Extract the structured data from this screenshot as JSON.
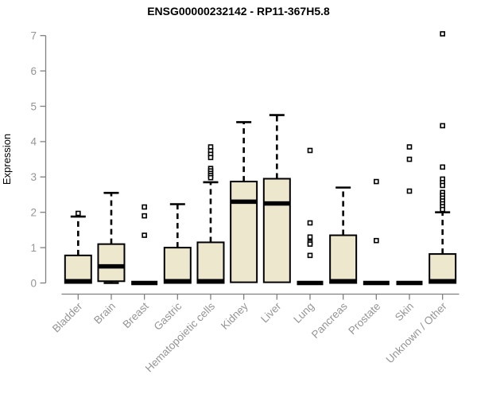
{
  "page": {
    "background": "#ffffff"
  },
  "chart_data": {
    "type": "boxplot",
    "title": "ENSG00000232142 - RP11-367H5.8",
    "ylabel": "Expression",
    "xlabel": "",
    "ylim": [
      0,
      7
    ],
    "y_ticks": [
      0,
      1,
      2,
      3,
      4,
      5,
      6,
      7
    ],
    "grid": false,
    "legend": "none",
    "categories": [
      "Bladder",
      "Brain",
      "Breast",
      "Gastric",
      "Hematopoietic cells",
      "Kidney",
      "Liver",
      "Lung",
      "Pancreas",
      "Prostate",
      "Skin",
      "Unknown / Other"
    ],
    "series": [
      {
        "name": "Bladder",
        "q1": 0,
        "median": 0.05,
        "q3": 0.78,
        "whisker_low": 0,
        "whisker_high": 1.88,
        "outliers": [
          1.97
        ]
      },
      {
        "name": "Brain",
        "q1": 0.05,
        "median": 0.47,
        "q3": 1.1,
        "whisker_low": 0,
        "whisker_high": 2.55,
        "outliers": []
      },
      {
        "name": "Breast",
        "q1": 0,
        "median": 0,
        "q3": 0,
        "whisker_low": 0,
        "whisker_high": 0,
        "outliers": [
          2.15,
          1.9,
          1.35
        ]
      },
      {
        "name": "Gastric",
        "q1": 0,
        "median": 0.05,
        "q3": 1.0,
        "whisker_low": 0,
        "whisker_high": 2.23,
        "outliers": []
      },
      {
        "name": "Hematopoietic cells",
        "q1": 0,
        "median": 0.05,
        "q3": 1.15,
        "whisker_low": 0,
        "whisker_high": 2.85,
        "outliers": [
          3.85,
          3.74,
          3.64,
          3.55,
          3.24,
          3.17,
          3.1,
          3.04,
          2.98
        ]
      },
      {
        "name": "Kidney",
        "q1": 0.02,
        "median": 2.3,
        "q3": 2.87,
        "whisker_low": 0,
        "whisker_high": 4.55,
        "outliers": []
      },
      {
        "name": "Liver",
        "q1": 0.02,
        "median": 2.25,
        "q3": 2.95,
        "whisker_low": 0,
        "whisker_high": 4.75,
        "outliers": []
      },
      {
        "name": "Lung",
        "q1": 0,
        "median": 0,
        "q3": 0,
        "whisker_low": 0,
        "whisker_high": 0,
        "outliers": [
          3.75,
          1.7,
          1.3,
          1.15,
          1.1,
          0.78
        ]
      },
      {
        "name": "Pancreas",
        "q1": 0,
        "median": 0.05,
        "q3": 1.35,
        "whisker_low": 0,
        "whisker_high": 2.7,
        "outliers": []
      },
      {
        "name": "Prostate",
        "q1": 0,
        "median": 0,
        "q3": 0,
        "whisker_low": 0,
        "whisker_high": 0,
        "outliers": [
          2.87,
          1.2
        ]
      },
      {
        "name": "Skin",
        "q1": 0,
        "median": 0,
        "q3": 0,
        "whisker_low": 0,
        "whisker_high": 0,
        "outliers": [
          3.85,
          3.5,
          2.6
        ]
      },
      {
        "name": "Unknown / Other",
        "q1": 0,
        "median": 0.05,
        "q3": 0.82,
        "whisker_low": 0,
        "whisker_high": 2.0,
        "outliers": [
          7.05,
          4.45,
          3.28,
          2.94,
          2.84,
          2.76,
          2.56,
          2.48,
          2.4,
          2.32,
          2.24,
          2.16,
          2.08
        ]
      }
    ]
  },
  "style": {
    "box_fill": "#EDE7CE",
    "box_border": "#000000",
    "median_color": "#000000",
    "whisker_color": "#000000",
    "outlier_color": "#000000",
    "axis_color": "#808080",
    "tick_label_color": "#959595",
    "title_color": "#000000"
  }
}
